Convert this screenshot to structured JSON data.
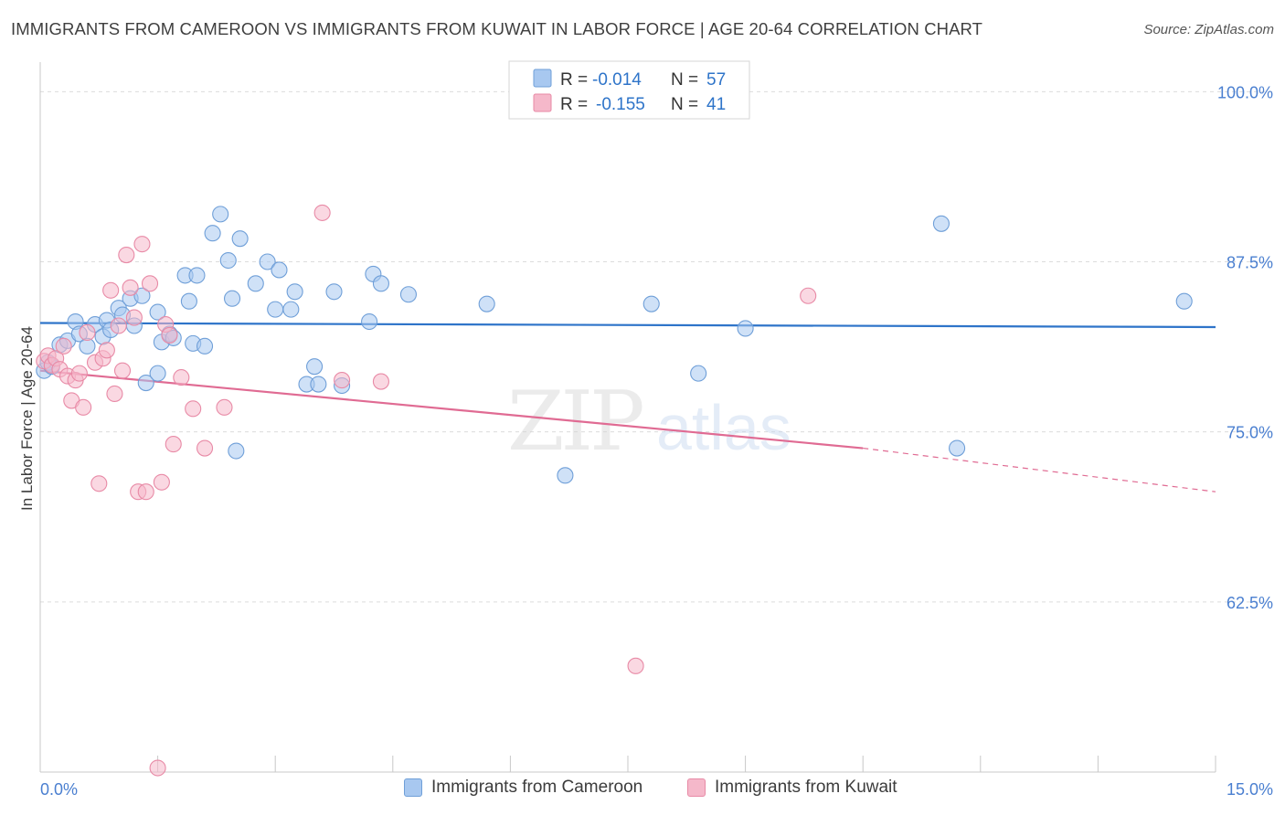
{
  "title": "IMMIGRANTS FROM CAMEROON VS IMMIGRANTS FROM KUWAIT IN LABOR FORCE | AGE 20-64 CORRELATION CHART",
  "source": "Source: ZipAtlas.com",
  "watermark": {
    "zip": "ZIP",
    "atlas": "atlas"
  },
  "legend_top": {
    "rows": [
      {
        "r_label": "R =",
        "r_value": "-0.014",
        "n_label": "N =",
        "n_value": "57"
      },
      {
        "r_label": "R =",
        "r_value": "-0.155",
        "n_label": "N =",
        "n_value": "41"
      }
    ]
  },
  "legend_bottom": {
    "items": [
      {
        "label": "Immigrants from Cameroon"
      },
      {
        "label": "Immigrants from Kuwait"
      }
    ]
  },
  "colors": {
    "cameroon_fill": "#a8c8f0",
    "cameroon_stroke": "#6f9fd8",
    "cameroon_line": "#2e74c9",
    "kuwait_fill": "#f5b8ca",
    "kuwait_stroke": "#e88aa6",
    "kuwait_line": "#e06b93",
    "tick_label": "#4a7fd0",
    "grid": "#dcdcdc"
  },
  "chart_data": {
    "type": "scatter",
    "ylabel": "In Labor Force | Age 20-64",
    "xlim": [
      0,
      15
    ],
    "ylim": [
      50,
      101.5
    ],
    "x_tick_labels": [
      "0.0%",
      "15.0%"
    ],
    "y_ticks": [
      {
        "value": 100,
        "label": "100.0%"
      },
      {
        "value": 87.5,
        "label": "87.5%"
      },
      {
        "value": 75,
        "label": "75.0%"
      },
      {
        "value": 62.5,
        "label": "62.5%"
      }
    ],
    "series": [
      {
        "name": "Immigrants from Cameroon",
        "trend": {
          "x0": 0,
          "y0": 83.0,
          "x1": 15,
          "y1": 82.7
        },
        "points": [
          [
            0.05,
            79.5
          ],
          [
            0.1,
            80.1
          ],
          [
            0.15,
            79.8
          ],
          [
            0.25,
            81.4
          ],
          [
            0.35,
            81.7
          ],
          [
            0.45,
            83.1
          ],
          [
            0.5,
            82.2
          ],
          [
            0.6,
            81.3
          ],
          [
            0.7,
            82.9
          ],
          [
            0.8,
            82.0
          ],
          [
            0.85,
            83.2
          ],
          [
            0.9,
            82.5
          ],
          [
            1.0,
            84.1
          ],
          [
            1.05,
            83.6
          ],
          [
            1.15,
            84.8
          ],
          [
            1.2,
            82.8
          ],
          [
            1.3,
            85.0
          ],
          [
            1.35,
            78.6
          ],
          [
            1.5,
            83.8
          ],
          [
            1.5,
            79.3
          ],
          [
            1.55,
            81.6
          ],
          [
            1.65,
            82.2
          ],
          [
            1.7,
            81.9
          ],
          [
            1.85,
            86.5
          ],
          [
            1.9,
            84.6
          ],
          [
            1.95,
            81.5
          ],
          [
            2.0,
            86.5
          ],
          [
            2.1,
            81.3
          ],
          [
            2.2,
            89.6
          ],
          [
            2.3,
            91.0
          ],
          [
            2.4,
            87.6
          ],
          [
            2.45,
            84.8
          ],
          [
            2.5,
            73.6
          ],
          [
            2.55,
            89.2
          ],
          [
            2.75,
            85.9
          ],
          [
            2.9,
            87.5
          ],
          [
            3.05,
            86.9
          ],
          [
            3.2,
            84.0
          ],
          [
            3.25,
            85.3
          ],
          [
            3.4,
            78.5
          ],
          [
            3.5,
            79.8
          ],
          [
            3.55,
            78.5
          ],
          [
            3.75,
            85.3
          ],
          [
            3.85,
            78.4
          ],
          [
            4.2,
            83.1
          ],
          [
            4.25,
            86.6
          ],
          [
            4.35,
            85.9
          ],
          [
            4.7,
            85.1
          ],
          [
            5.7,
            84.4
          ],
          [
            6.7,
            71.8
          ],
          [
            7.8,
            84.4
          ],
          [
            8.4,
            79.3
          ],
          [
            9.0,
            82.6
          ],
          [
            11.5,
            90.3
          ],
          [
            11.7,
            73.8
          ],
          [
            14.6,
            84.6
          ],
          [
            3.0,
            84.0
          ]
        ]
      },
      {
        "name": "Immigrants from Kuwait",
        "trend": {
          "x0": 0,
          "y0": 79.5,
          "x1": 10.5,
          "y1": 73.8,
          "dash_x1": 15,
          "dash_y1": 70.6
        },
        "points": [
          [
            0.05,
            80.2
          ],
          [
            0.1,
            80.6
          ],
          [
            0.15,
            79.9
          ],
          [
            0.2,
            80.4
          ],
          [
            0.25,
            79.6
          ],
          [
            0.3,
            81.3
          ],
          [
            0.35,
            79.1
          ],
          [
            0.4,
            77.3
          ],
          [
            0.45,
            78.8
          ],
          [
            0.5,
            79.3
          ],
          [
            0.55,
            76.8
          ],
          [
            0.6,
            82.3
          ],
          [
            0.7,
            80.1
          ],
          [
            0.75,
            71.2
          ],
          [
            0.8,
            80.4
          ],
          [
            0.85,
            81.0
          ],
          [
            0.9,
            85.4
          ],
          [
            0.95,
            77.8
          ],
          [
            1.0,
            82.8
          ],
          [
            1.05,
            79.5
          ],
          [
            1.1,
            88.0
          ],
          [
            1.15,
            85.6
          ],
          [
            1.2,
            83.4
          ],
          [
            1.25,
            70.6
          ],
          [
            1.3,
            88.8
          ],
          [
            1.35,
            70.6
          ],
          [
            1.4,
            85.9
          ],
          [
            1.5,
            50.3
          ],
          [
            1.55,
            71.3
          ],
          [
            1.6,
            82.9
          ],
          [
            1.65,
            82.1
          ],
          [
            1.7,
            74.1
          ],
          [
            1.8,
            79.0
          ],
          [
            1.95,
            76.7
          ],
          [
            2.1,
            73.8
          ],
          [
            2.35,
            76.8
          ],
          [
            3.6,
            91.1
          ],
          [
            3.85,
            78.8
          ],
          [
            4.35,
            78.7
          ],
          [
            7.6,
            57.8
          ],
          [
            9.8,
            85.0
          ]
        ]
      }
    ]
  }
}
